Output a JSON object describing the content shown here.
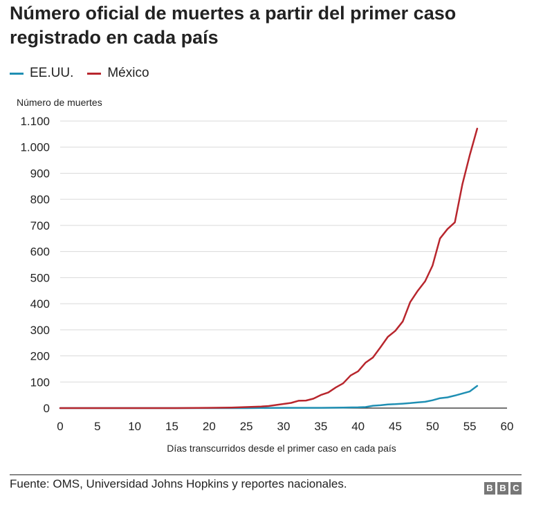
{
  "header": {
    "title": "Número oficial de muertes a partir del primer caso registrado en cada país"
  },
  "legend": {
    "items": [
      {
        "label": "EE.UU.",
        "color": "#1f8fb3"
      },
      {
        "label": "México",
        "color": "#b8262d"
      }
    ]
  },
  "footer": {
    "source": "Fuente: OMS, Universidad Johns Hopkins y reportes nacionales.",
    "logo_letters": [
      "B",
      "B",
      "C"
    ]
  },
  "chart_data": {
    "type": "line",
    "title": "Número oficial de muertes a partir del primer caso registrado en cada país",
    "xlabel": "Días transcurridos desde el primer caso en cada país",
    "ylabel": "Número de muertes",
    "xlim": [
      0,
      60
    ],
    "ylim": [
      0,
      1100
    ],
    "x_ticks": [
      0,
      5,
      10,
      15,
      20,
      25,
      30,
      35,
      40,
      45,
      50,
      55,
      60
    ],
    "x_tick_labels": [
      "0",
      "5",
      "10",
      "15",
      "20",
      "25",
      "30",
      "35",
      "40",
      "45",
      "50",
      "55",
      "60"
    ],
    "y_ticks": [
      0,
      100,
      200,
      300,
      400,
      500,
      600,
      700,
      800,
      900,
      1000,
      1100
    ],
    "y_tick_labels": [
      "0",
      "100",
      "200",
      "300",
      "400",
      "500",
      "600",
      "700",
      "800",
      "900",
      "1.000",
      "1.100"
    ],
    "grid": "horizontal",
    "legend_position": "top-left",
    "series": [
      {
        "name": "EE.UU.",
        "color": "#1f8fb3",
        "x": [
          0,
          5,
          10,
          15,
          20,
          25,
          30,
          35,
          38,
          40,
          41,
          42,
          43,
          44,
          45,
          46,
          47,
          48,
          49,
          50,
          51,
          52,
          53,
          54,
          55,
          56
        ],
        "y": [
          0,
          0,
          0,
          0,
          0,
          0,
          1,
          1,
          2,
          3,
          4,
          9,
          11,
          14,
          15,
          17,
          19,
          22,
          24,
          30,
          38,
          41,
          48,
          56,
          64,
          85
        ]
      },
      {
        "name": "México",
        "color": "#b8262d",
        "x": [
          0,
          5,
          10,
          15,
          20,
          23,
          25,
          27,
          28,
          29,
          30,
          31,
          32,
          33,
          34,
          35,
          36,
          37,
          38,
          39,
          40,
          41,
          42,
          43,
          44,
          45,
          46,
          47,
          48,
          49,
          50,
          51,
          52,
          53,
          54,
          55,
          56
        ],
        "y": [
          0,
          0,
          0,
          0,
          1,
          2,
          4,
          6,
          8,
          12,
          16,
          20,
          28,
          29,
          36,
          50,
          60,
          79,
          95,
          125,
          141,
          174,
          194,
          233,
          273,
          296,
          332,
          406,
          449,
          486,
          546,
          650,
          686,
          712,
          857,
          970,
          1071
        ]
      }
    ]
  }
}
